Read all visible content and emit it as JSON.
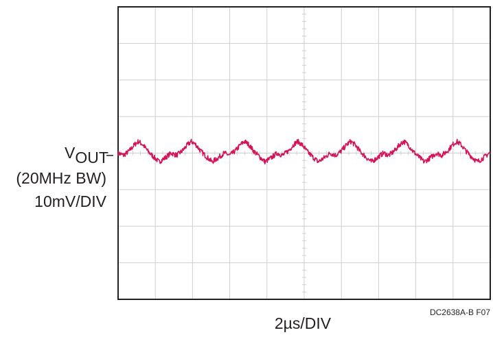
{
  "chart_data": {
    "type": "line",
    "title": "",
    "trace_label": {
      "main": "V",
      "subscript": "OUT"
    },
    "channel_labels": [
      "(20MHz BW)",
      "10mV/DIV"
    ],
    "xlabel": "2µs/DIV",
    "figure_id": "DC2638A-B F07",
    "x_unit": "µs",
    "y_unit": "mV",
    "xlim": [
      0,
      20
    ],
    "ylim": [
      -40,
      40
    ],
    "grid": true,
    "trace_color": "#d4145a",
    "grid_color": "#cfcfcf",
    "ripple": {
      "period_us": 2.85,
      "points": [
        [
          0.0,
          0.0
        ],
        [
          0.3,
          -0.6
        ],
        [
          0.6,
          0.6
        ],
        [
          0.9,
          2.4
        ],
        [
          1.1,
          3.2
        ],
        [
          1.35,
          2.2
        ],
        [
          1.6,
          0.5
        ],
        [
          1.9,
          -1.0
        ],
        [
          2.2,
          -2.4
        ],
        [
          2.5,
          -1.4
        ],
        [
          2.85,
          0.0
        ]
      ]
    }
  }
}
